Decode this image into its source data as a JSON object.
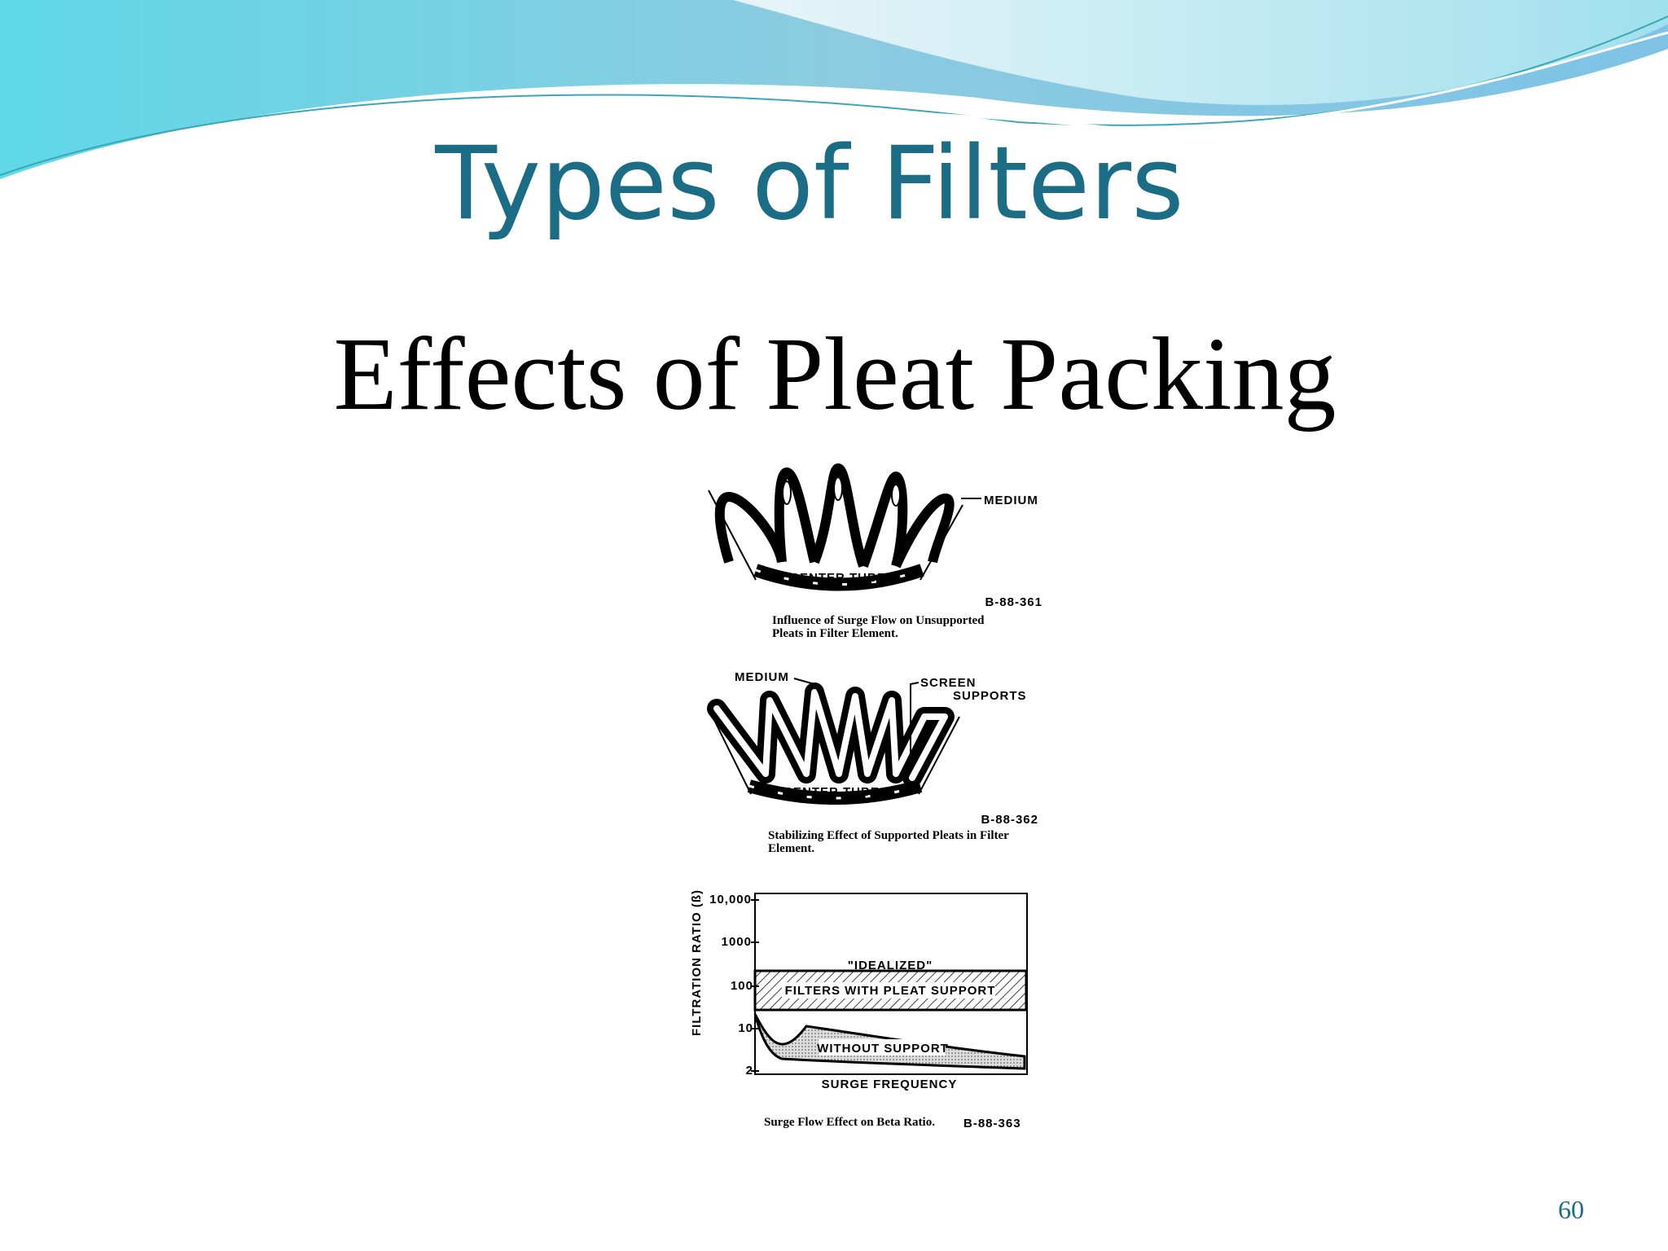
{
  "slide": {
    "title": "Types of Filters",
    "subtitle": "Effects of Pleat Packing",
    "figures": [
      {
        "labels": [
          "MEDIUM",
          "CENTER TUBE"
        ],
        "code": "B-88-361",
        "caption": [
          "Influence of Surge Flow on Unsupported",
          "Pleats in Filter Element."
        ]
      },
      {
        "labels": [
          "MEDIUM",
          "SCREEN",
          "SUPPORTS",
          "CENTER TUBE"
        ],
        "code": "B-88-362",
        "caption": [
          "Stabilizing Effect of Supported Pleats in Filter",
          "Element."
        ]
      }
    ],
    "graph": {
      "y_label": "FILTRATION RATIO (ß)",
      "y_ticks": [
        "10,000",
        "1000",
        "100",
        "10",
        "2"
      ],
      "x_label": "SURGE FREQUENCY",
      "annotations": [
        "\"IDEALIZED\"",
        "FILTERS WITH PLEAT SUPPORT",
        "WITHOUT SUPPORT"
      ],
      "caption": "Surge Flow Effect on Beta Ratio.",
      "code": "B-88-363"
    },
    "page_number": "60"
  }
}
